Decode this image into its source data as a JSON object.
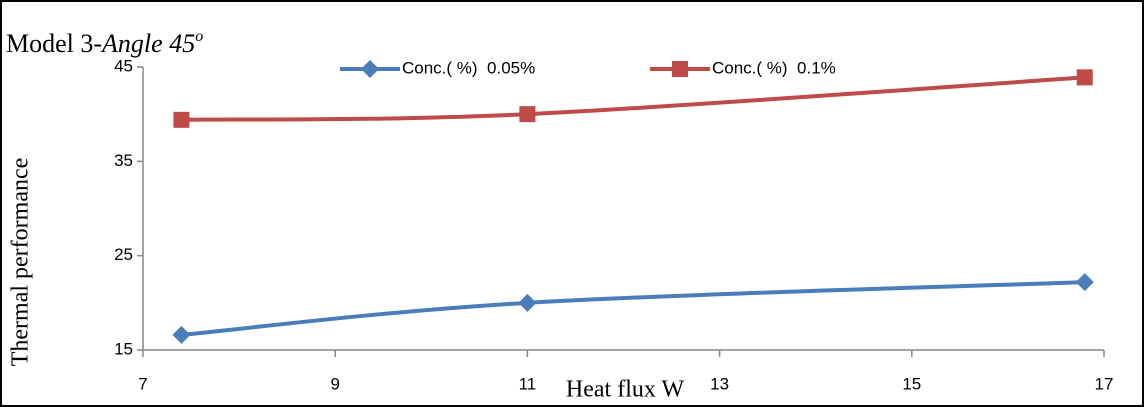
{
  "chart_data": {
    "type": "line",
    "title": {
      "plain": "Model 3-",
      "italic": "Angle 45",
      "superscript": "o"
    },
    "x_label": "Heat flux W",
    "y_label": "Thermal performance",
    "x": [
      7.4,
      11,
      16.8
    ],
    "series": [
      {
        "name": "Conc.( %)  0.05%",
        "color": "#4a7ebb",
        "marker": "diamond",
        "values": [
          16.6,
          20.0,
          22.2
        ]
      },
      {
        "name": "Conc.( %)  0.1%",
        "color": "#be4b48",
        "marker": "square",
        "values": [
          39.4,
          40.0,
          43.9
        ]
      }
    ],
    "xlim": [
      7,
      17
    ],
    "xticks": [
      7,
      9,
      11,
      13,
      15,
      17
    ],
    "ylim": [
      15,
      45
    ],
    "yticks": [
      15,
      25,
      35,
      45
    ],
    "grid": false,
    "legend": "top"
  }
}
